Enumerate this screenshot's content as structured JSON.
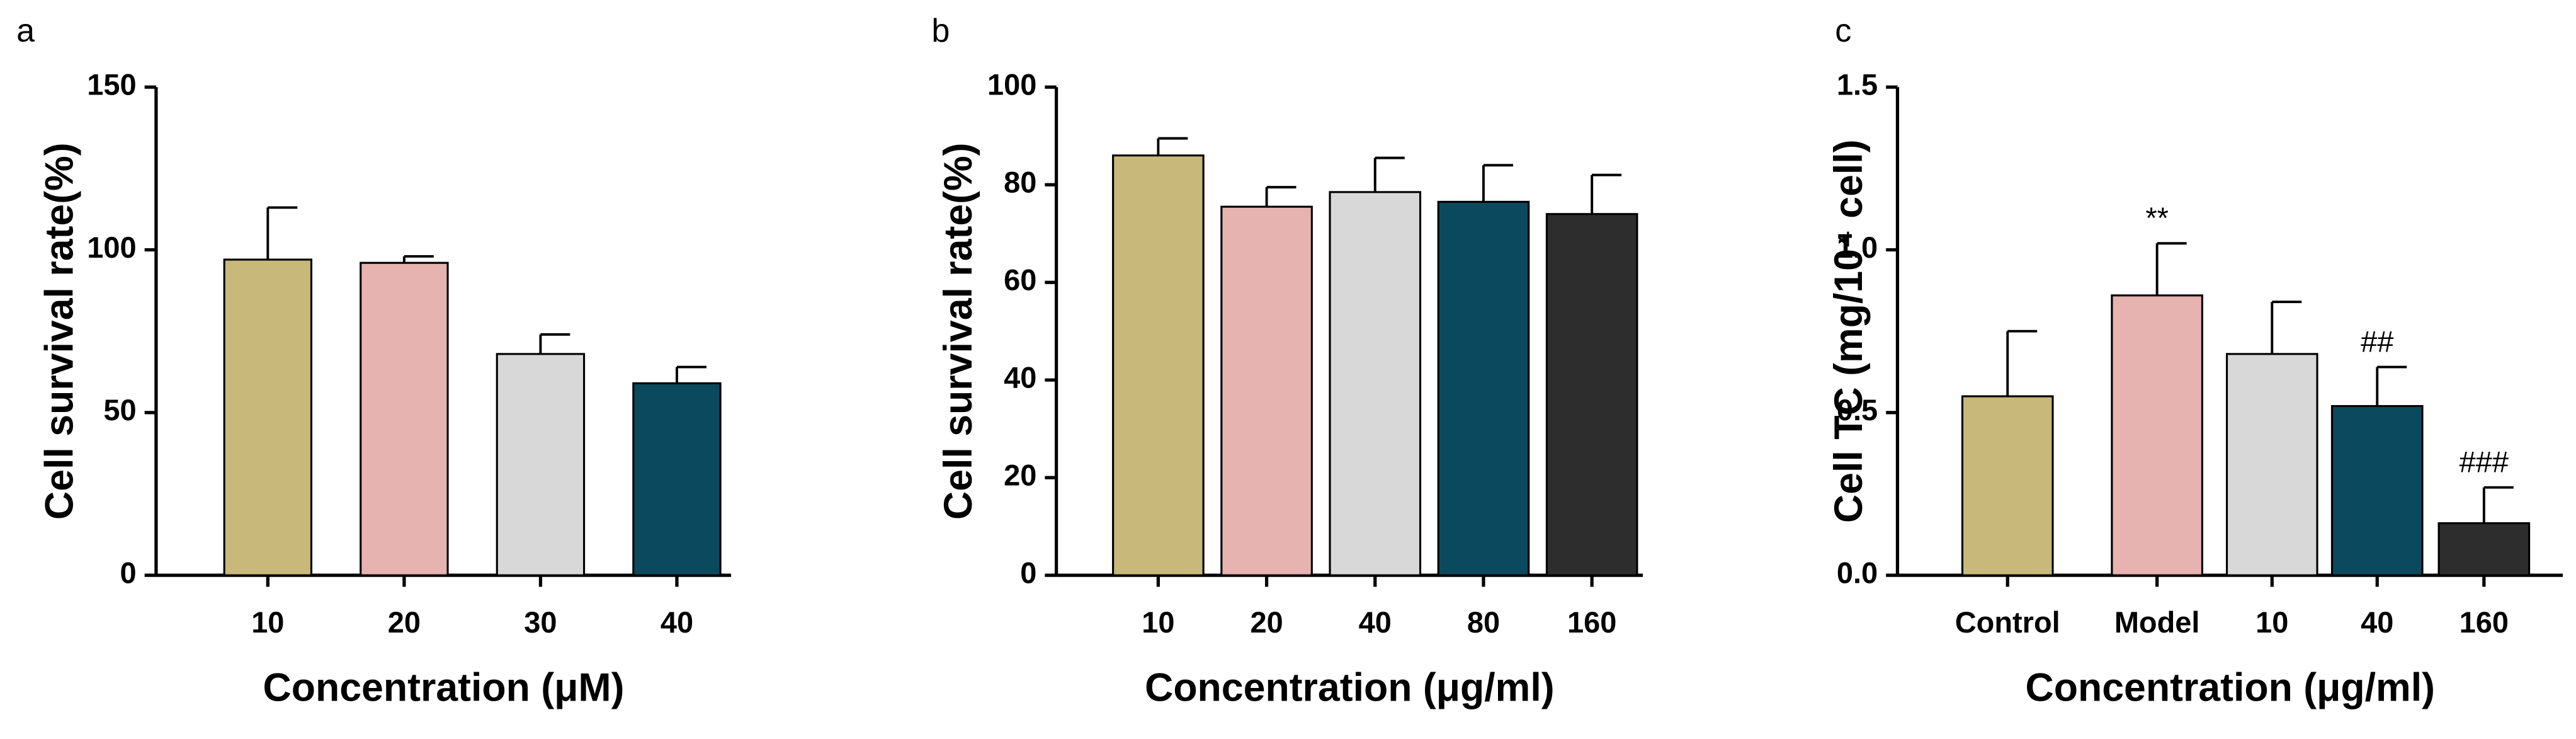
{
  "chart_data": [
    {
      "type": "bar",
      "label": "a",
      "xlabel": "Concentration (μM)",
      "ylabel": "Cell survival rate(%)",
      "categories": [
        "10",
        "20",
        "30",
        "40"
      ],
      "values": [
        97,
        96,
        68,
        59
      ],
      "errors": [
        16,
        2,
        6,
        5
      ],
      "colors": [
        "#c8b97a",
        "#e7b3b0",
        "#d8d8d8",
        "#0b4a5e"
      ],
      "ylim": [
        0,
        150
      ],
      "yticks": [
        0,
        50,
        100,
        150
      ]
    },
    {
      "type": "bar",
      "label": "b",
      "xlabel": "Concentration (μg/ml)",
      "ylabel": "Cell survival rate(%)",
      "categories": [
        "10",
        "20",
        "40",
        "80",
        "160"
      ],
      "values": [
        86,
        75.5,
        78.5,
        76.5,
        74
      ],
      "errors": [
        3.5,
        4,
        7,
        7.5,
        8
      ],
      "colors": [
        "#c8b97a",
        "#e7b3b0",
        "#d8d8d8",
        "#0b4a5e",
        "#2d2d2d"
      ],
      "ylim": [
        0,
        100
      ],
      "yticks": [
        0,
        20,
        40,
        60,
        80,
        100
      ]
    },
    {
      "type": "bar",
      "label": "c",
      "xlabel": "Concentration (μg/ml)",
      "ylabel": "Cell TC (mg/10⁴ cell)",
      "categories": [
        "Control",
        "Model",
        "10",
        "40",
        "160"
      ],
      "values": [
        0.55,
        0.86,
        0.68,
        0.52,
        0.16
      ],
      "errors": [
        0.2,
        0.16,
        0.16,
        0.12,
        0.11
      ],
      "annotations": [
        null,
        "**",
        null,
        "##",
        "###"
      ],
      "colors": [
        "#c8b97a",
        "#e7b3b0",
        "#d8d8d8",
        "#0b4a5e",
        "#2d2d2d"
      ],
      "ylim": [
        0,
        1.5
      ],
      "yticks": [
        {
          "value": 0,
          "label": "0.0"
        },
        0.5,
        {
          "value": 1,
          "label": "1.0"
        },
        1.5
      ]
    }
  ]
}
